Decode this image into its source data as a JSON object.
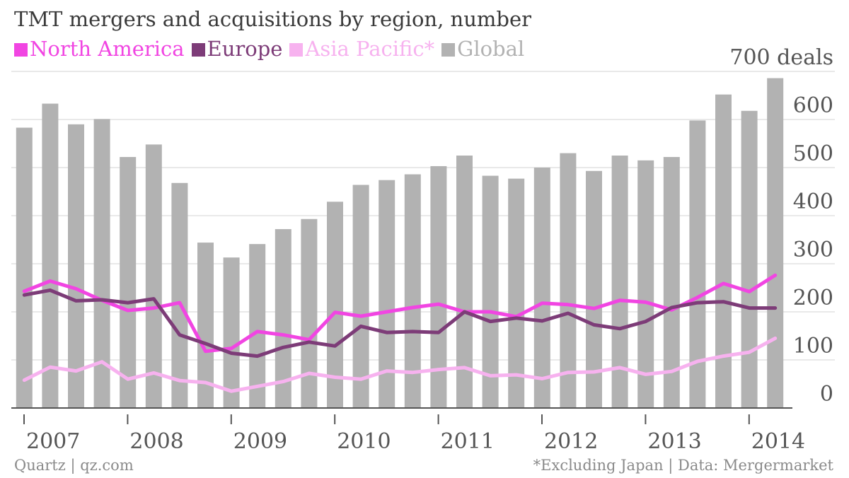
{
  "chart_data": {
    "type": "bar",
    "title": "TMT mergers and acquisitions by region, number",
    "subtitle": "",
    "ylabel": "",
    "xlabel": "",
    "y_unit_label": "700 deals",
    "ylim": [
      0,
      700
    ],
    "yticks": [
      0,
      100,
      200,
      300,
      400,
      500,
      600,
      700
    ],
    "grid": true,
    "legend_position": "top-left",
    "x_start": "2007 Q1",
    "x_tick_labels": [
      "2007",
      "2008",
      "2009",
      "2010",
      "2011",
      "2012",
      "2013",
      "2014"
    ],
    "x": [
      "2007 Q1",
      "2007 Q2",
      "2007 Q3",
      "2007 Q4",
      "2008 Q1",
      "2008 Q2",
      "2008 Q3",
      "2008 Q4",
      "2009 Q1",
      "2009 Q2",
      "2009 Q3",
      "2009 Q4",
      "2010 Q1",
      "2010 Q2",
      "2010 Q3",
      "2010 Q4",
      "2011 Q1",
      "2011 Q2",
      "2011 Q3",
      "2011 Q4",
      "2012 Q1",
      "2012 Q2",
      "2012 Q3",
      "2012 Q4",
      "2013 Q1",
      "2013 Q2",
      "2013 Q3",
      "2013 Q4",
      "2014 Q1",
      "2014 Q2"
    ],
    "series": [
      {
        "name": "Global",
        "kind": "bar",
        "color": "#b2b2b2",
        "values": [
          583,
          633,
          590,
          601,
          522,
          548,
          468,
          344,
          313,
          341,
          372,
          393,
          429,
          464,
          474,
          486,
          503,
          525,
          483,
          477,
          500,
          530,
          493,
          525,
          515,
          522,
          598,
          652,
          618,
          686
        ]
      },
      {
        "name": "North America",
        "kind": "line",
        "color": "#f145e2",
        "values": [
          243,
          264,
          248,
          224,
          203,
          208,
          219,
          118,
          124,
          159,
          152,
          142,
          199,
          191,
          200,
          209,
          216,
          200,
          200,
          190,
          218,
          215,
          207,
          224,
          220,
          204,
          230,
          259,
          242,
          276
        ]
      },
      {
        "name": "Europe",
        "kind": "line",
        "color": "#7d3c78",
        "values": [
          235,
          245,
          223,
          225,
          219,
          227,
          152,
          134,
          114,
          108,
          126,
          137,
          129,
          170,
          157,
          159,
          157,
          200,
          180,
          187,
          181,
          197,
          173,
          165,
          180,
          209,
          219,
          221,
          208,
          208
        ]
      },
      {
        "name": "Asia Pacific*",
        "kind": "line",
        "color": "#f7b2ef",
        "values": [
          58,
          85,
          77,
          96,
          60,
          73,
          57,
          53,
          35,
          45,
          55,
          72,
          64,
          60,
          77,
          74,
          80,
          84,
          67,
          69,
          61,
          74,
          75,
          84,
          70,
          76,
          97,
          108,
          116,
          145
        ]
      }
    ]
  },
  "footer": {
    "source": "Quartz | qz.com",
    "note": "*Excluding Japan | Data: Mergermarket"
  }
}
